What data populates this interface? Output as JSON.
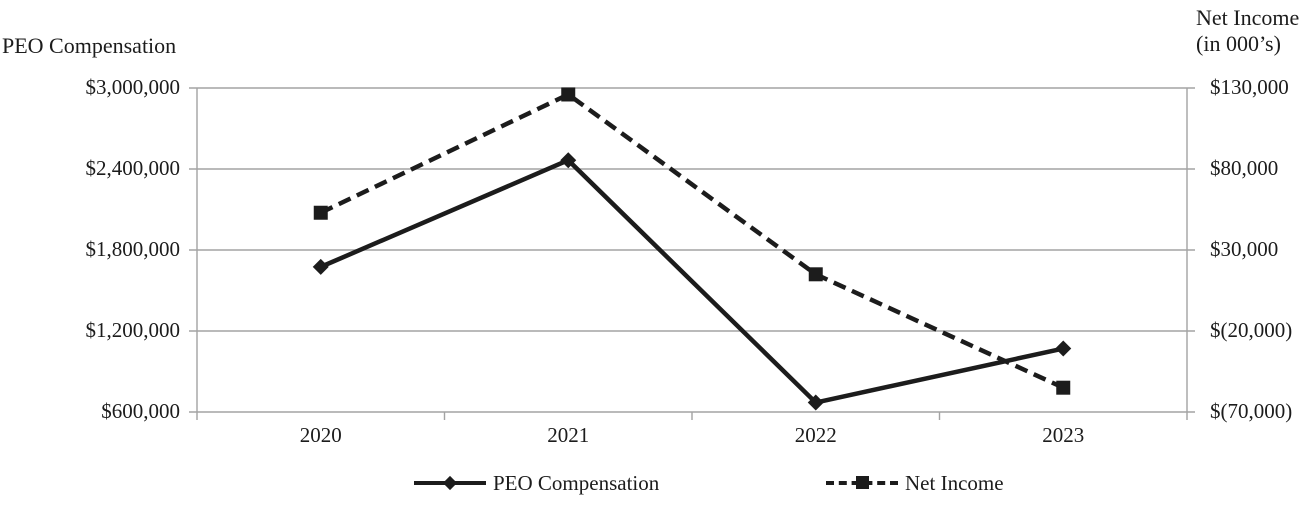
{
  "titles": {
    "left_axis_title": "PEO Compensation",
    "right_axis_title_line1": "Net Income",
    "right_axis_title_line2": "(in 000’s)"
  },
  "chart_data": {
    "type": "line",
    "categories": [
      "2020",
      "2021",
      "2022",
      "2023"
    ],
    "series": [
      {
        "name": "PEO Compensation",
        "axis": "left",
        "line_style": "solid",
        "marker": "diamond",
        "values": [
          1675000,
          2465000,
          670000,
          1070000
        ]
      },
      {
        "name": "Net Income",
        "axis": "right",
        "line_style": "dashed",
        "marker": "square",
        "values": [
          53000,
          126000,
          15000,
          -55000
        ]
      }
    ],
    "left_axis": {
      "title": "PEO Compensation",
      "tick_labels": [
        "$3,000,000",
        "$2,400,000",
        "$1,800,000",
        "$1,200,000",
        "$600,000"
      ],
      "tick_values": [
        3000000,
        2400000,
        1800000,
        1200000,
        600000
      ],
      "min": 600000,
      "max": 3000000
    },
    "right_axis": {
      "title": "Net Income (in 000's)",
      "tick_labels": [
        "$130,000",
        "$80,000",
        "$30,000",
        "$(20,000)",
        "$(70,000)"
      ],
      "tick_values": [
        130000,
        80000,
        30000,
        -20000,
        -70000
      ],
      "min": -70000,
      "max": 130000
    },
    "grid": true,
    "legend_position": "bottom",
    "legend": [
      {
        "label": "PEO Compensation"
      },
      {
        "label": "Net Income"
      }
    ]
  },
  "colors": {
    "series": "#1c1c1c",
    "grid": "#a3a3a3",
    "axis": "#a3a3a3",
    "text": "#1c1c1c",
    "background": "#ffffff"
  }
}
